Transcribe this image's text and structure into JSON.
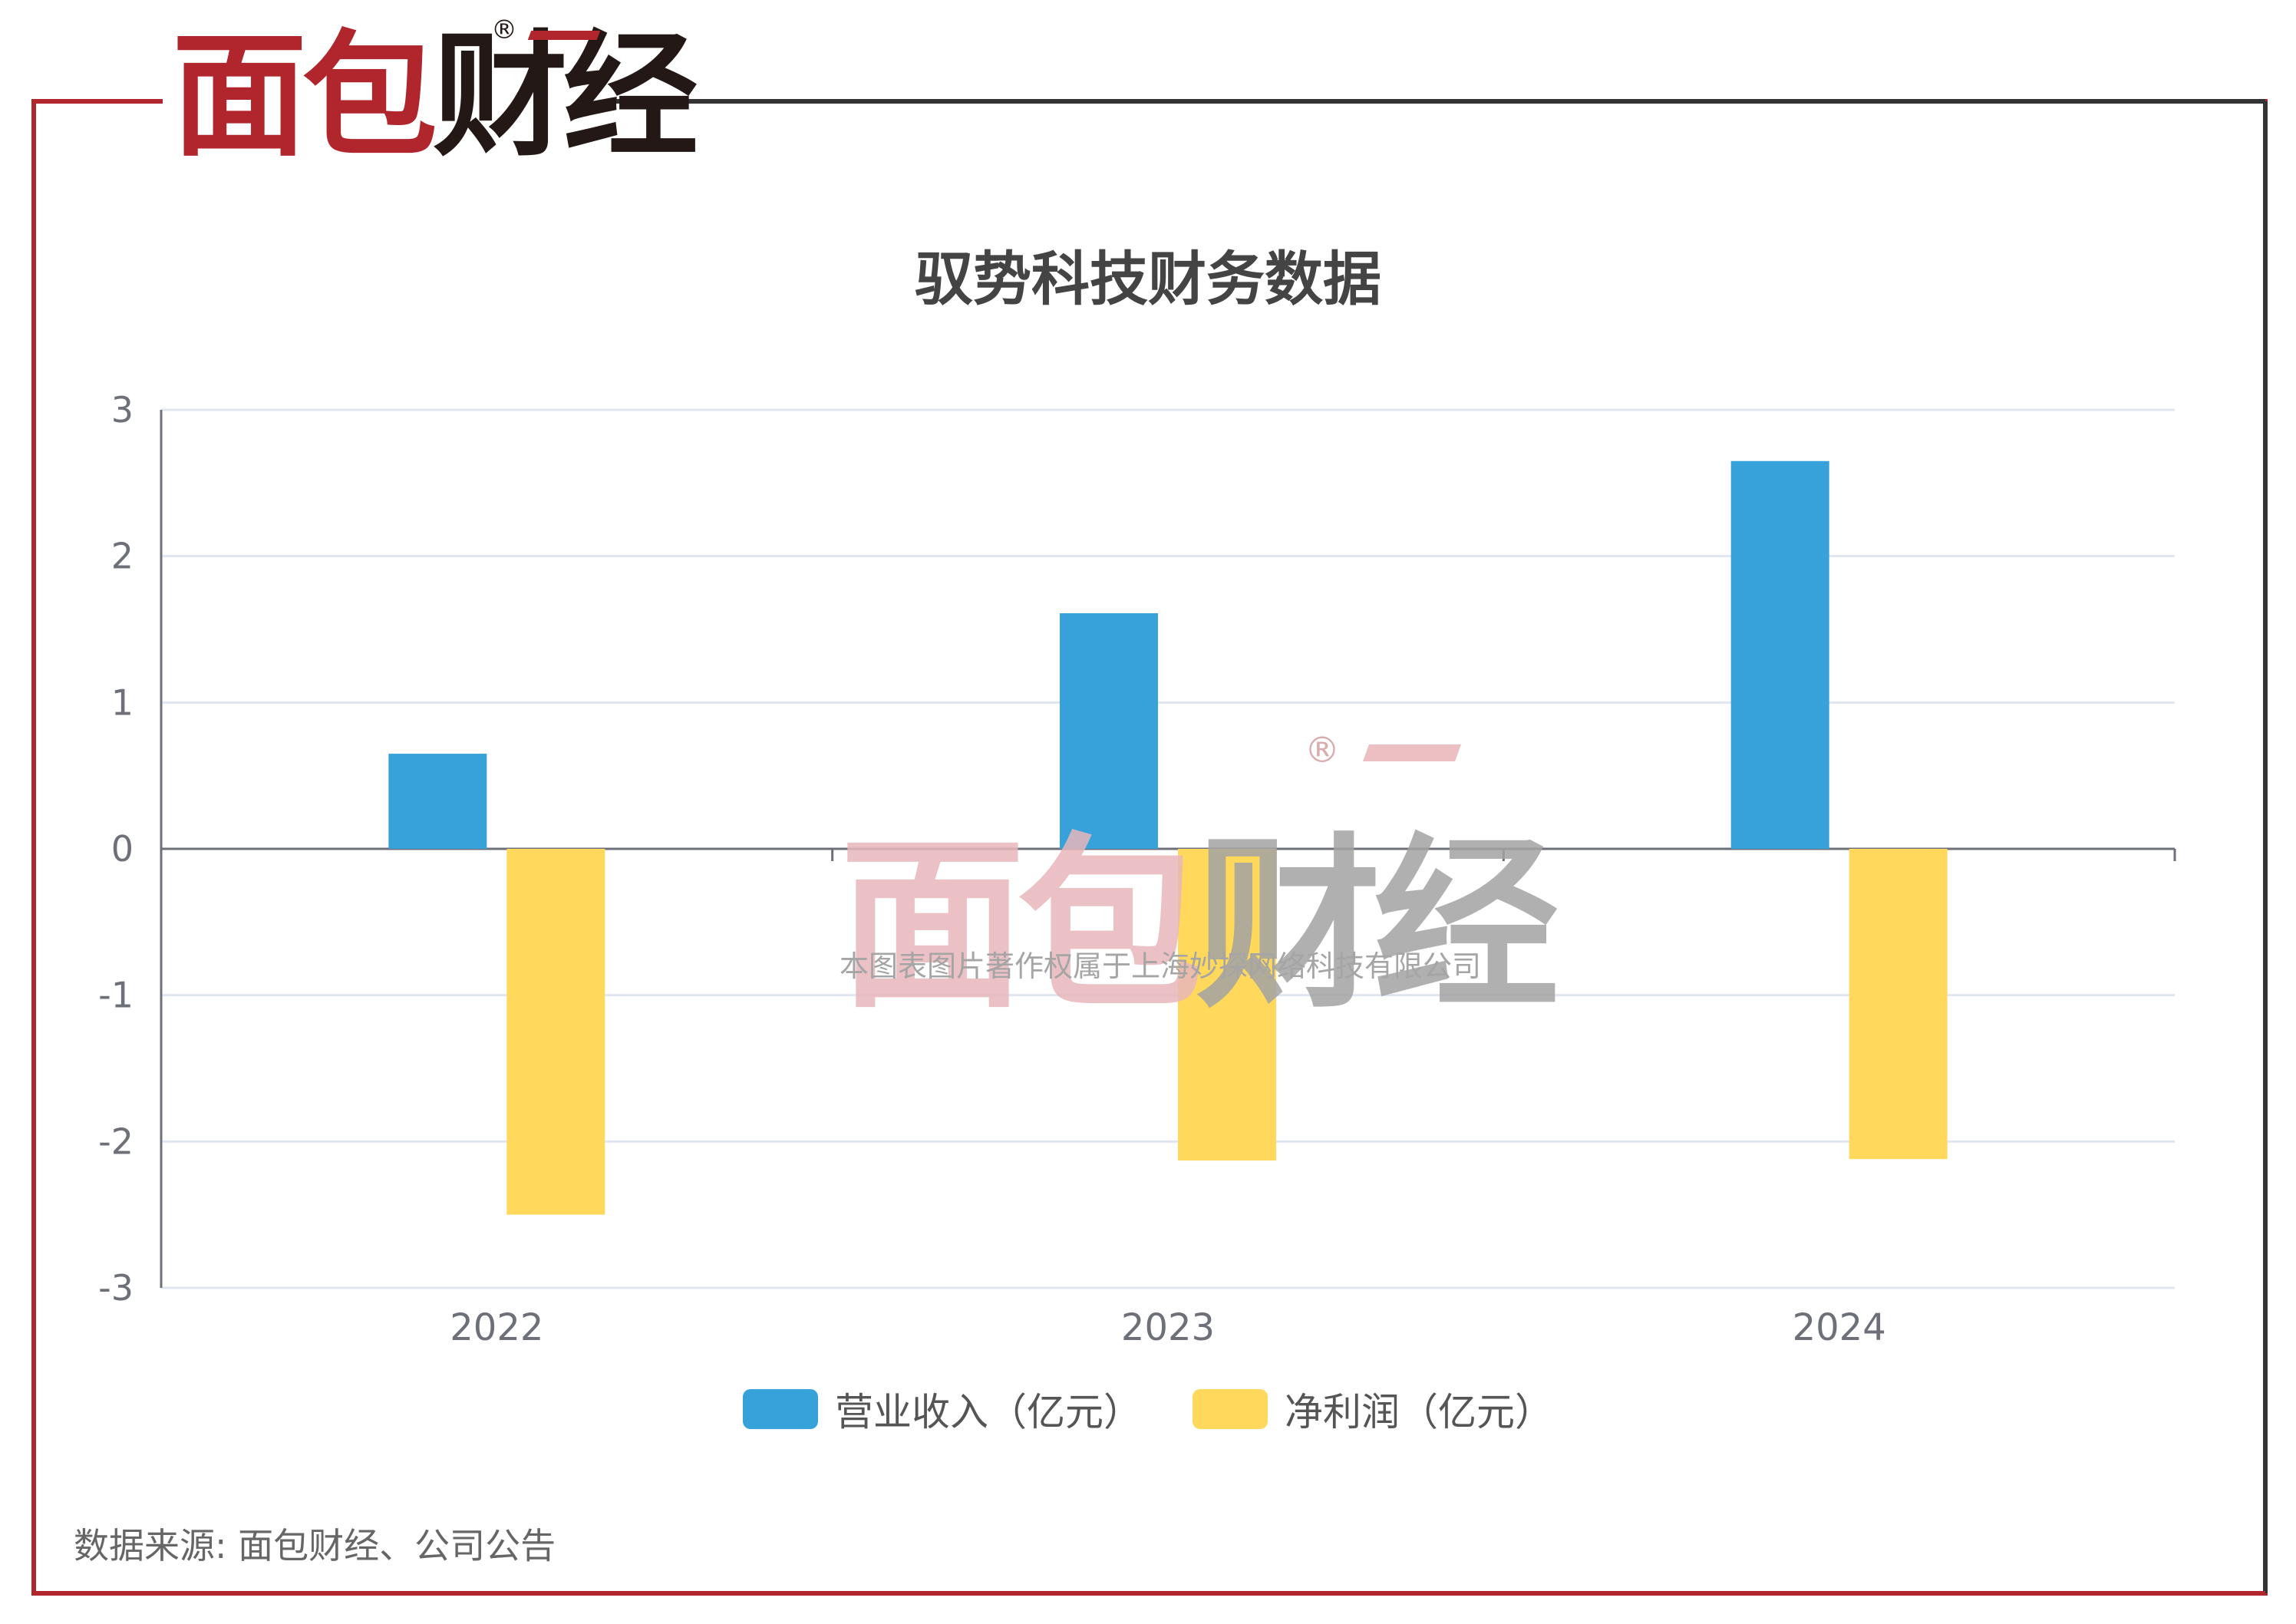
{
  "brand": {
    "logo_red": "面包",
    "logo_black": "财经",
    "registered_mark": "®",
    "watermark_red": "面包",
    "watermark_black": "财经",
    "watermark_caption": "本图表图片著作权属于上海妙探网络科技有限公司",
    "red_color": "#b1252d",
    "dark_color": "#231815"
  },
  "chart_data": {
    "type": "bar",
    "title": "驭势科技财务数据",
    "categories": [
      "2022",
      "2023",
      "2024"
    ],
    "series": [
      {
        "name": "营业收入（亿元）",
        "color": "#37a2da",
        "values": [
          0.65,
          1.61,
          2.65
        ]
      },
      {
        "name": "净利润（亿元）",
        "color": "#ffd85c",
        "values": [
          -2.5,
          -2.13,
          -2.12
        ]
      }
    ],
    "ylim": [
      -3,
      3
    ],
    "yticks": [
      "3",
      "2",
      "1",
      "0",
      "-1",
      "-2",
      "-3"
    ],
    "xlabel": "",
    "ylabel": "",
    "grid": true,
    "legend": "bottom-center"
  },
  "footer": {
    "source": "数据来源: 面包财经、公司公告"
  }
}
